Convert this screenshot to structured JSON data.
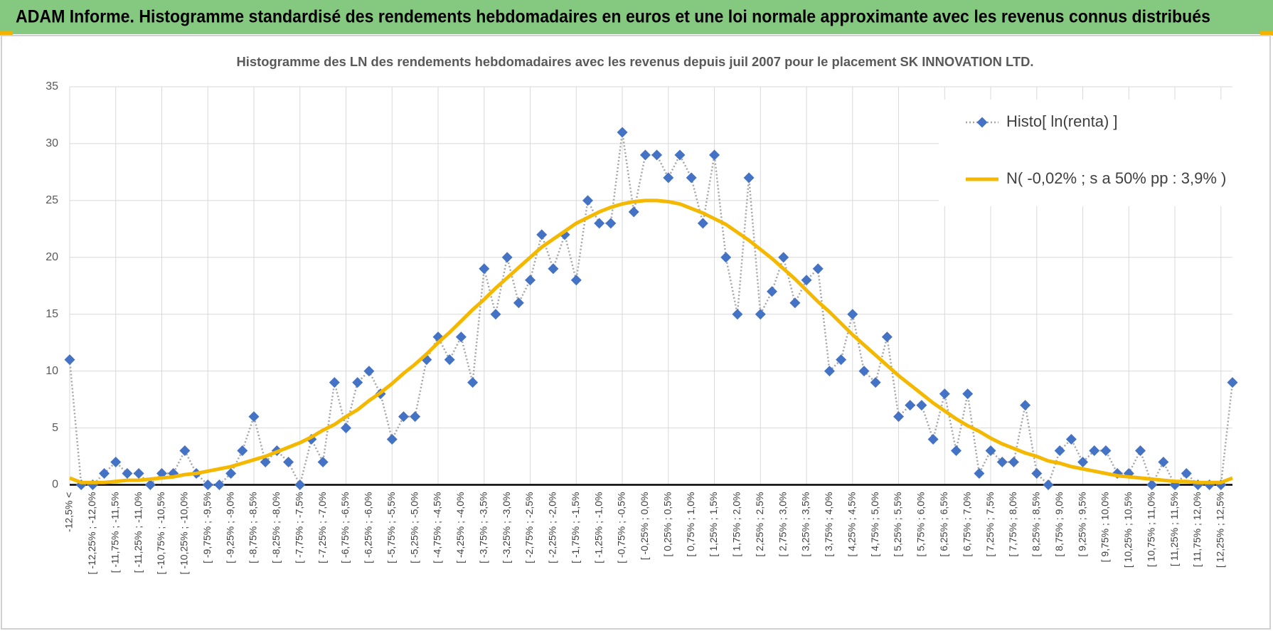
{
  "header": {
    "title": "ADAM Informe. Histogramme standardisé des rendements hebdomadaires en euros et une loi normale approximante avec les revenus connus distribués"
  },
  "chart_data": {
    "type": "line",
    "title": "Histogramme des LN des rendements hebdomadaires avec les revenus depuis juil 2007 pour le placement SK INNOVATION LTD.",
    "categories": [
      "-12,5% <",
      null,
      "[ -12,25% ; -12,0%",
      null,
      "[ -11,75% ; -11,5%",
      null,
      "[ -11,25% ; -11,0%",
      null,
      "[ -10,75% ; -10,5%",
      null,
      "[ -10,25% ; -10,0%",
      null,
      "[ -9,75% ; -9,5%",
      null,
      "[ -9,25% ; -9,0%",
      null,
      "[ -8,75% ; -8,5%",
      null,
      "[ -8,25% ; -8,0%",
      null,
      "[ -7,75% ; -7,5%",
      null,
      "[ -7,25% ; -7,0%",
      null,
      "[ -6,75% ; -6,5%",
      null,
      "[ -6,25% ; -6,0%",
      null,
      "[ -5,75% ; -5,5%",
      null,
      "[ -5,25% ; -5,0%",
      null,
      "[ -4,75% ; -4,5%",
      null,
      "[ -4,25% ; -4,0%",
      null,
      "[ -3,75% ; -3,5%",
      null,
      "[ -3,25% ; -3,0%",
      null,
      "[ -2,75% ; -2,5%",
      null,
      "[ -2,25% ; -2,0%",
      null,
      "[ -1,75% ; -1,5%",
      null,
      "[ -1,25% ; -1,0%",
      null,
      "[ -0,75% ; -0,5%",
      null,
      "[ -0,25% ; 0,0%",
      null,
      "[ 0,25% ; 0,5%",
      null,
      "[ 0,75% ; 1,0%",
      null,
      "[ 1,25% ; 1,5%",
      null,
      "[ 1,75% ; 2,0%",
      null,
      "[ 2,25% ; 2,5%",
      null,
      "[ 2,75% ; 3,0%",
      null,
      "[ 3,25% ; 3,5%",
      null,
      "[ 3,75% ; 4,0%",
      null,
      "[ 4,25% ; 4,5%",
      null,
      "[ 4,75% ; 5,0%",
      null,
      "[ 5,25% ; 5,5%",
      null,
      "[ 5,75% ; 6,0%",
      null,
      "[ 6,25% ; 6,5%",
      null,
      "[ 6,75% ; 7,0%",
      null,
      "[ 7,25% ; 7,5%",
      null,
      "[ 7,75% ; 8,0%",
      null,
      "[ 8,25% ; 8,5%",
      null,
      "[ 8,75% ; 9,0%",
      null,
      "[ 9,25% ; 9,5%",
      null,
      "[ 9,75% ; 10,0%",
      null,
      "[ 10,25% ; 10,5%",
      null,
      "[ 10,75% ; 11,0%",
      null,
      "[ 11,25% ; 11,5%",
      null,
      "[ 11,75% ; 12,0%",
      null,
      "[ 12,25% ; 12,5%",
      null
    ],
    "series": [
      {
        "name": "Histo[ ln(renta) ]",
        "color": "#4472c4",
        "line_color": "#a5a5a5",
        "line_style": "dotted",
        "marker": "diamond",
        "values": [
          11,
          0,
          0,
          1,
          2,
          1,
          1,
          0,
          1,
          1,
          3,
          1,
          0,
          0,
          1,
          3,
          6,
          2,
          3,
          2,
          0,
          4,
          2,
          9,
          5,
          9,
          10,
          8,
          4,
          6,
          6,
          11,
          13,
          11,
          13,
          9,
          19,
          15,
          20,
          16,
          18,
          22,
          19,
          22,
          18,
          25,
          23,
          23,
          31,
          24,
          29,
          29,
          27,
          29,
          27,
          23,
          29,
          20,
          15,
          27,
          15,
          17,
          20,
          16,
          18,
          19,
          10,
          11,
          15,
          10,
          9,
          13,
          6,
          7,
          7,
          4,
          8,
          3,
          8,
          1,
          3,
          2,
          2,
          7,
          1,
          0,
          3,
          4,
          2,
          3,
          3,
          1,
          1,
          3,
          0,
          2,
          0,
          1,
          0,
          0,
          0,
          9
        ]
      },
      {
        "name": "N( -0,02% ; s a 50% pp : 3,9% )",
        "color": "#f5b800",
        "line_style": "solid",
        "values": [
          0.6,
          0.2,
          0.2,
          0.2,
          0.3,
          0.4,
          0.4,
          0.5,
          0.6,
          0.7,
          0.9,
          1.0,
          1.2,
          1.4,
          1.6,
          1.9,
          2.2,
          2.5,
          2.9,
          3.3,
          3.7,
          4.2,
          4.8,
          5.3,
          6.0,
          6.6,
          7.4,
          8.1,
          8.9,
          9.8,
          10.6,
          11.5,
          12.5,
          13.4,
          14.4,
          15.4,
          16.3,
          17.3,
          18.2,
          19.1,
          20.0,
          20.9,
          21.6,
          22.3,
          23.0,
          23.5,
          24.0,
          24.4,
          24.7,
          24.9,
          25.0,
          25.0,
          24.9,
          24.7,
          24.3,
          23.9,
          23.4,
          22.9,
          22.2,
          21.5,
          20.7,
          19.9,
          19.0,
          18.1,
          17.1,
          16.1,
          15.2,
          14.2,
          13.2,
          12.3,
          11.4,
          10.5,
          9.6,
          8.8,
          8.0,
          7.2,
          6.5,
          5.8,
          5.2,
          4.7,
          4.1,
          3.6,
          3.2,
          2.8,
          2.5,
          2.1,
          1.9,
          1.6,
          1.4,
          1.2,
          1.0,
          0.8,
          0.7,
          0.6,
          0.5,
          0.4,
          0.3,
          0.3,
          0.2,
          0.2,
          0.2,
          0.6
        ]
      }
    ],
    "ylim": [
      0,
      35
    ],
    "yticks": [
      0,
      5,
      10,
      15,
      20,
      25,
      30,
      35
    ],
    "grid": true,
    "legend": "top-right"
  }
}
